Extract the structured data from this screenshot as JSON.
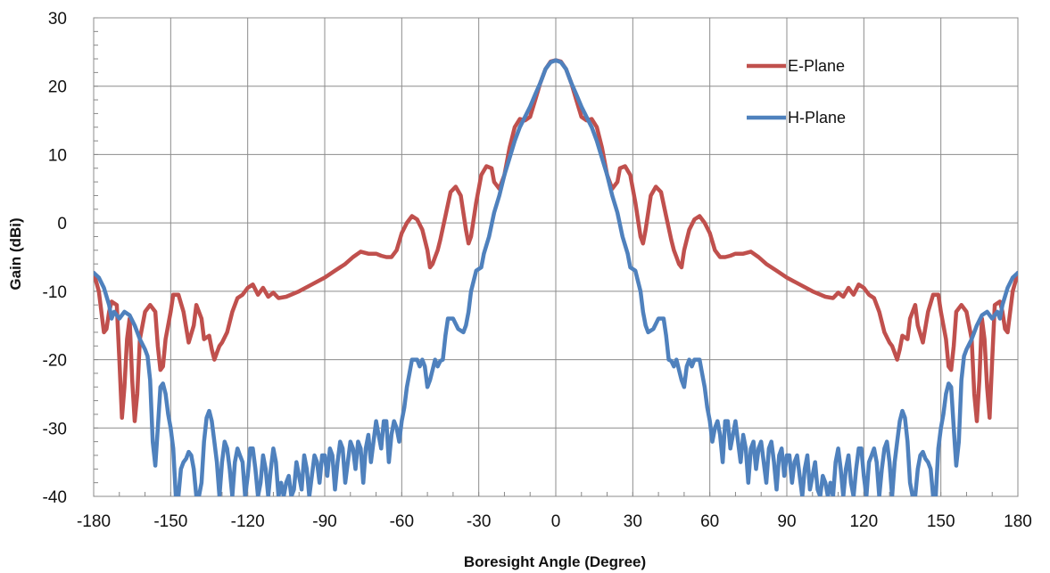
{
  "chart_data": {
    "type": "line",
    "title": "",
    "xlabel": "Boresight Angle (Degree)",
    "ylabel": "Gain (dBi)",
    "xlim": [
      -180,
      180
    ],
    "ylim": [
      -40,
      30
    ],
    "x_ticks": [
      -180,
      -150,
      -120,
      -90,
      -60,
      -30,
      0,
      30,
      60,
      90,
      120,
      150,
      180
    ],
    "y_ticks": [
      30,
      20,
      10,
      0,
      -10,
      -20,
      -30,
      -40
    ],
    "grid": true,
    "legend_position": "top-right",
    "series": [
      {
        "name": "E-Plane",
        "color": "#C0504D",
        "points": [
          [
            0,
            23.8
          ],
          [
            2,
            23.6
          ],
          [
            4,
            22.5
          ],
          [
            6,
            20.5
          ],
          [
            8,
            18
          ],
          [
            10,
            15.5
          ],
          [
            12,
            15
          ],
          [
            14,
            15.2
          ],
          [
            16,
            14
          ],
          [
            18,
            11
          ],
          [
            20,
            7
          ],
          [
            22,
            5
          ],
          [
            24,
            6
          ],
          [
            25,
            8
          ],
          [
            27,
            8.3
          ],
          [
            29,
            7
          ],
          [
            31,
            3
          ],
          [
            33,
            -2
          ],
          [
            34,
            -3
          ],
          [
            35,
            -1
          ],
          [
            37,
            4
          ],
          [
            39,
            5.3
          ],
          [
            41,
            4.5
          ],
          [
            43,
            1
          ],
          [
            45,
            -2.5
          ],
          [
            46,
            -4
          ],
          [
            47,
            -5
          ],
          [
            48,
            -6
          ],
          [
            49,
            -6.5
          ],
          [
            50,
            -4
          ],
          [
            52,
            -1
          ],
          [
            54,
            0.5
          ],
          [
            56,
            1
          ],
          [
            58,
            0
          ],
          [
            60,
            -1.5
          ],
          [
            62,
            -4
          ],
          [
            64,
            -5
          ],
          [
            66,
            -5
          ],
          [
            68,
            -4.8
          ],
          [
            70,
            -4.5
          ],
          [
            73,
            -4.5
          ],
          [
            76,
            -4.2
          ],
          [
            79,
            -5
          ],
          [
            82,
            -6
          ],
          [
            86,
            -7
          ],
          [
            90,
            -8
          ],
          [
            95,
            -9
          ],
          [
            100,
            -10
          ],
          [
            105,
            -10.8
          ],
          [
            108,
            -11
          ],
          [
            110,
            -10.2
          ],
          [
            112,
            -10.8
          ],
          [
            114,
            -9.5
          ],
          [
            116,
            -10.5
          ],
          [
            118,
            -9
          ],
          [
            120,
            -9.5
          ],
          [
            122,
            -10.5
          ],
          [
            124,
            -11
          ],
          [
            126,
            -13
          ],
          [
            128,
            -16
          ],
          [
            130,
            -17.5
          ],
          [
            131,
            -18
          ],
          [
            132,
            -19
          ],
          [
            133,
            -20
          ],
          [
            134,
            -18.5
          ],
          [
            135,
            -16.5
          ],
          [
            137,
            -17
          ],
          [
            138,
            -14
          ],
          [
            140,
            -12
          ],
          [
            141,
            -15
          ],
          [
            143,
            -17.5
          ],
          [
            145,
            -13
          ],
          [
            147,
            -10.5
          ],
          [
            149,
            -10.5
          ],
          [
            150,
            -13
          ],
          [
            152,
            -17
          ],
          [
            153,
            -21
          ],
          [
            154,
            -21.5
          ],
          [
            155,
            -18
          ],
          [
            156,
            -13
          ],
          [
            158,
            -12
          ],
          [
            160,
            -13
          ],
          [
            162,
            -17
          ],
          [
            163,
            -25
          ],
          [
            164,
            -29
          ],
          [
            165,
            -23
          ],
          [
            166,
            -14
          ],
          [
            167,
            -17
          ],
          [
            168,
            -24
          ],
          [
            169,
            -28.5
          ],
          [
            170,
            -20
          ],
          [
            171,
            -12
          ],
          [
            173,
            -11.5
          ],
          [
            174,
            -13
          ],
          [
            175,
            -15.5
          ],
          [
            176,
            -16
          ],
          [
            178,
            -10
          ],
          [
            180,
            -7.3
          ]
        ]
      },
      {
        "name": "H-Plane",
        "color": "#4F81BD",
        "points": [
          [
            0,
            23.8
          ],
          [
            2,
            23.5
          ],
          [
            4,
            22.5
          ],
          [
            6,
            20.5
          ],
          [
            8,
            18.8
          ],
          [
            10,
            17
          ],
          [
            12,
            15.5
          ],
          [
            14,
            14
          ],
          [
            16,
            12
          ],
          [
            18,
            9.5
          ],
          [
            20,
            7
          ],
          [
            22,
            4
          ],
          [
            24,
            1.5
          ],
          [
            26,
            -2
          ],
          [
            28,
            -4.5
          ],
          [
            29,
            -6.5
          ],
          [
            31,
            -7
          ],
          [
            33,
            -10
          ],
          [
            34,
            -13
          ],
          [
            35,
            -15
          ],
          [
            36,
            -16
          ],
          [
            38,
            -15.5
          ],
          [
            40,
            -14
          ],
          [
            42,
            -14
          ],
          [
            43,
            -16.5
          ],
          [
            44,
            -20
          ],
          [
            45,
            -20.2
          ],
          [
            46,
            -21
          ],
          [
            47,
            -20
          ],
          [
            48,
            -21.5
          ],
          [
            49,
            -23
          ],
          [
            50,
            -24
          ],
          [
            51,
            -21
          ],
          [
            52,
            -20
          ],
          [
            53,
            -21
          ],
          [
            54,
            -20
          ],
          [
            56,
            -20
          ],
          [
            57,
            -22
          ],
          [
            58,
            -24
          ],
          [
            59,
            -27
          ],
          [
            60,
            -29
          ],
          [
            61,
            -32
          ],
          [
            62,
            -30
          ],
          [
            63,
            -29
          ],
          [
            64,
            -31
          ],
          [
            65,
            -35
          ],
          [
            66,
            -29
          ],
          [
            67,
            -29
          ],
          [
            68,
            -33
          ],
          [
            69,
            -31
          ],
          [
            70,
            -29
          ],
          [
            71,
            -32
          ],
          [
            72,
            -35
          ],
          [
            73,
            -31
          ],
          [
            74,
            -33
          ],
          [
            75,
            -38
          ],
          [
            76,
            -33
          ],
          [
            77,
            -32
          ],
          [
            78,
            -36
          ],
          [
            79,
            -33
          ],
          [
            80,
            -32
          ],
          [
            81,
            -35
          ],
          [
            82,
            -38
          ],
          [
            83,
            -33
          ],
          [
            84,
            -32
          ],
          [
            85,
            -35
          ],
          [
            86,
            -39
          ],
          [
            87,
            -34
          ],
          [
            88,
            -33
          ],
          [
            89,
            -37
          ],
          [
            90,
            -34
          ],
          [
            91,
            -34
          ],
          [
            92,
            -38
          ],
          [
            93,
            -35
          ],
          [
            94,
            -34
          ],
          [
            95,
            -37
          ],
          [
            96,
            -40
          ],
          [
            97,
            -36
          ],
          [
            98,
            -34
          ],
          [
            99,
            -39
          ],
          [
            100,
            -37
          ],
          [
            101,
            -35
          ],
          [
            102,
            -39
          ],
          [
            103,
            -40
          ],
          [
            104,
            -37
          ],
          [
            105,
            -38
          ],
          [
            106,
            -40
          ],
          [
            107,
            -38
          ],
          [
            108,
            -40
          ],
          [
            109,
            -35
          ],
          [
            110,
            -33
          ],
          [
            111,
            -36
          ],
          [
            112,
            -40
          ],
          [
            113,
            -36
          ],
          [
            114,
            -34
          ],
          [
            115,
            -38
          ],
          [
            116,
            -40
          ],
          [
            117,
            -36
          ],
          [
            118,
            -33
          ],
          [
            119,
            -33
          ],
          [
            120,
            -37
          ],
          [
            121,
            -40
          ],
          [
            122,
            -35
          ],
          [
            123,
            -34
          ],
          [
            124,
            -33
          ],
          [
            125,
            -35
          ],
          [
            126,
            -40
          ],
          [
            127,
            -36
          ],
          [
            128,
            -33
          ],
          [
            129,
            -32
          ],
          [
            130,
            -35
          ],
          [
            131,
            -40
          ],
          [
            132,
            -35
          ],
          [
            133,
            -32
          ],
          [
            134,
            -29
          ],
          [
            135,
            -27.5
          ],
          [
            136,
            -28.5
          ],
          [
            137,
            -32
          ],
          [
            138,
            -38
          ],
          [
            139,
            -40
          ],
          [
            140,
            -40
          ],
          [
            141,
            -36
          ],
          [
            142,
            -34
          ],
          [
            143,
            -33.5
          ],
          [
            144,
            -34.5
          ],
          [
            145,
            -35
          ],
          [
            146,
            -36
          ],
          [
            147,
            -40
          ],
          [
            148,
            -40
          ],
          [
            149,
            -33
          ],
          [
            150,
            -30
          ],
          [
            151,
            -28
          ],
          [
            152,
            -25
          ],
          [
            153,
            -23.5
          ],
          [
            154,
            -24
          ],
          [
            155,
            -30
          ],
          [
            156,
            -35.5
          ],
          [
            157,
            -32
          ],
          [
            158,
            -23
          ],
          [
            159,
            -19.5
          ],
          [
            160,
            -18.5
          ],
          [
            162,
            -17
          ],
          [
            164,
            -15
          ],
          [
            166,
            -13.5
          ],
          [
            168,
            -13
          ],
          [
            170,
            -14
          ],
          [
            172,
            -13
          ],
          [
            173,
            -14
          ],
          [
            174,
            -12
          ],
          [
            176,
            -9.5
          ],
          [
            178,
            -8
          ],
          [
            180,
            -7.3
          ]
        ]
      }
    ]
  }
}
